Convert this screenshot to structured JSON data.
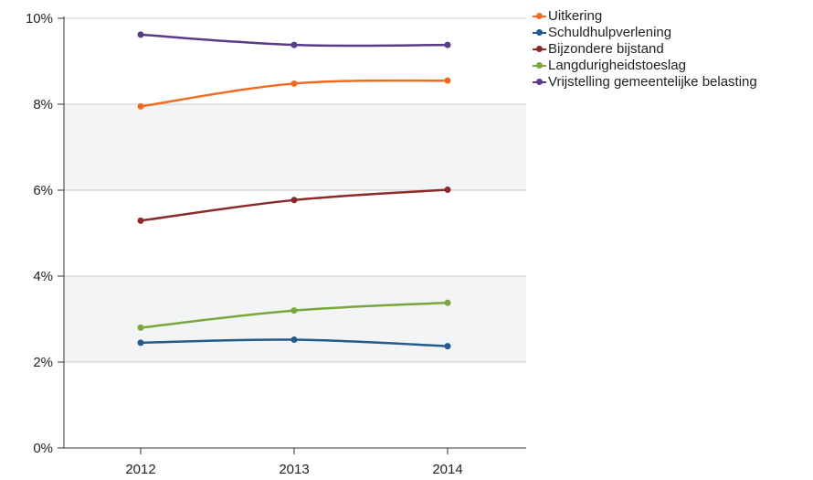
{
  "chart_data": {
    "type": "line",
    "categories": [
      "2012",
      "2013",
      "2014"
    ],
    "ylim": [
      0,
      10
    ],
    "y_ticks": [
      "0%",
      "2%",
      "4%",
      "6%",
      "8%",
      "10%"
    ],
    "grid": true,
    "legend_position": "right",
    "series": [
      {
        "name": "Uitkering",
        "color": "#f26a22",
        "values": [
          7.95,
          8.48,
          8.55
        ]
      },
      {
        "name": "Schuldhulpverlening",
        "color": "#235b8f",
        "values": [
          2.45,
          2.52,
          2.37
        ]
      },
      {
        "name": "Bijzondere bijstand",
        "color": "#8b2a2a",
        "values": [
          5.29,
          5.77,
          6.01
        ]
      },
      {
        "name": "Langdurigheidstoeslag",
        "color": "#7aa63a",
        "values": [
          2.8,
          3.2,
          3.38
        ]
      },
      {
        "name": "Vrijstelling gemeentelijke belasting",
        "color": "#5b3a88",
        "values": [
          9.62,
          9.38,
          9.38
        ]
      }
    ]
  }
}
